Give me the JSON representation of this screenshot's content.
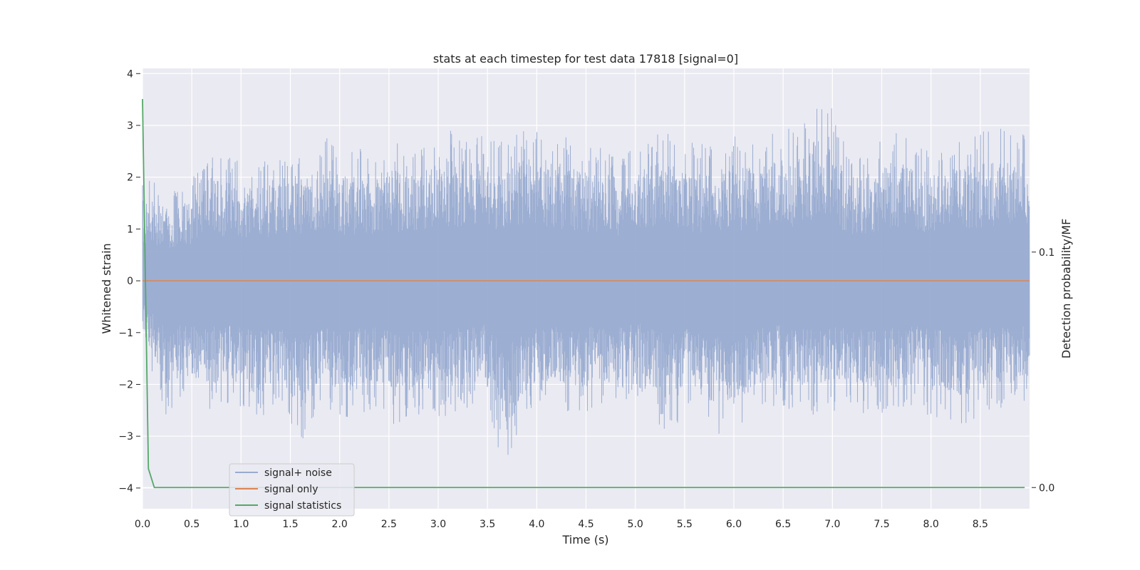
{
  "chart_data": {
    "type": "line",
    "title": "stats at each timestep for test data 17818 [signal=0]",
    "xlabel": "Time (s)",
    "ylabel": "Whitened strain",
    "ylabel_right": "Detection probability/MF",
    "xlim": [
      0.0,
      9.0
    ],
    "ylim": [
      -4.4,
      4.1
    ],
    "ylim_right": [
      -0.009,
      0.178
    ],
    "xticks": [
      "0.0",
      "0.5",
      "1.0",
      "1.5",
      "2.0",
      "2.5",
      "3.0",
      "3.5",
      "4.0",
      "4.5",
      "5.0",
      "5.5",
      "6.0",
      "6.5",
      "7.0",
      "7.5",
      "8.0",
      "8.5"
    ],
    "yticks": [
      "4",
      "3",
      "2",
      "1",
      "0",
      "−1",
      "−2",
      "−3",
      "−4"
    ],
    "yticks_right": [
      "0.1",
      "0.0"
    ],
    "grid": true,
    "legend_position": "lower-left",
    "series": [
      {
        "name": "signal+ noise",
        "color": "#98abd0",
        "envelope_upper": [
          2.0,
          1.8,
          1.9,
          2.5,
          2.4,
          2.3,
          2.5,
          2.6,
          2.8,
          2.5,
          2.6,
          2.7,
          2.5,
          3.0,
          2.9,
          2.8,
          2.7,
          3.0,
          2.9,
          2.7,
          2.6,
          2.5,
          2.8,
          2.9,
          2.7,
          2.6,
          2.8,
          2.7,
          2.9,
          3.0,
          3.7,
          2.5,
          2.6,
          2.9,
          2.7,
          2.6,
          2.8,
          2.9,
          3.0,
          2.8
        ],
        "envelope_lower": [
          -1.2,
          -2.6,
          -2.3,
          -2.5,
          -2.4,
          -2.8,
          -2.4,
          -3.1,
          -2.6,
          -2.7,
          -2.5,
          -2.8,
          -2.6,
          -2.7,
          -2.5,
          -2.4,
          -3.7,
          -2.5,
          -2.4,
          -2.6,
          -2.5,
          -2.4,
          -2.3,
          -3.0,
          -2.6,
          -3.0,
          -3.1,
          -2.5,
          -2.4,
          -2.6,
          -2.6,
          -2.4,
          -2.7,
          -2.6,
          -2.5,
          -2.7,
          -2.8,
          -2.6,
          -2.5,
          -2.4
        ]
      },
      {
        "name": "signal only",
        "color": "#dd8452",
        "x": [
          0.0,
          9.0
        ],
        "values": [
          0.0,
          0.0
        ]
      },
      {
        "name": "signal statistics",
        "color": "#55a868",
        "axis": "right",
        "x": [
          0.0,
          0.06,
          0.12,
          8.95
        ],
        "values": [
          0.165,
          0.008,
          0.0,
          0.0
        ]
      }
    ]
  }
}
